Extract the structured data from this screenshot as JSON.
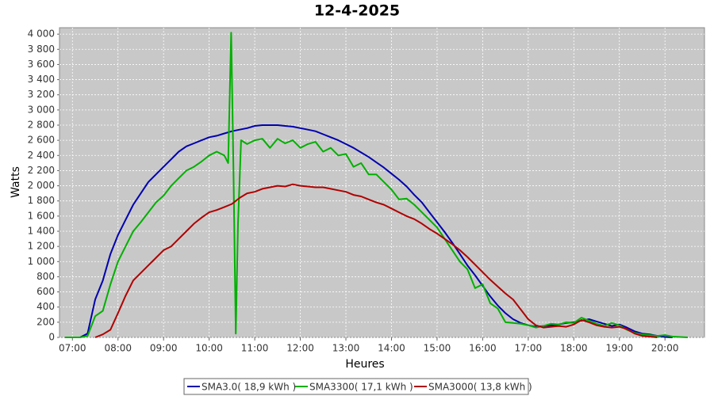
{
  "chart_data": {
    "type": "line",
    "title": "12-4-2025",
    "x_label": "Heures",
    "y_label": "Watts",
    "xlim": [
      "06:43",
      "20:52"
    ],
    "ylim": [
      0,
      4085
    ],
    "xticks": [
      "07:00",
      "08:00",
      "09:00",
      "10:00",
      "11:00",
      "12:00",
      "13:00",
      "14:00",
      "15:00",
      "16:00",
      "17:00",
      "18:00",
      "19:00",
      "20:00"
    ],
    "yticks": [
      0,
      200,
      400,
      600,
      800,
      {
        "value": 1000,
        "label": "1 000"
      },
      {
        "value": 1200,
        "label": "1 200"
      },
      {
        "value": 1400,
        "label": "1 400"
      },
      {
        "value": 1600,
        "label": "1 600"
      },
      {
        "value": 1800,
        "label": "1 800"
      },
      {
        "value": 2000,
        "label": "2 000"
      },
      {
        "value": 2200,
        "label": "2 200"
      },
      {
        "value": 2400,
        "label": "2 400"
      },
      {
        "value": 2600,
        "label": "2 600"
      },
      {
        "value": 2800,
        "label": "2 800"
      },
      {
        "value": 3000,
        "label": "3 000"
      },
      {
        "value": 3200,
        "label": "3 200"
      },
      {
        "value": 3400,
        "label": "3 400"
      },
      {
        "value": 3600,
        "label": "3 600"
      },
      {
        "value": 3800,
        "label": "3 800"
      },
      {
        "value": 4000,
        "label": "4 000"
      }
    ],
    "grid": true,
    "legend": "bottom",
    "series": [
      {
        "name": "SMA3.0( 18,9 kWh )",
        "color": "#0000b0",
        "x": [
          "07:00",
          "07:10",
          "07:20",
          "07:30",
          "07:40",
          "07:50",
          "08:00",
          "08:10",
          "08:20",
          "08:30",
          "08:40",
          "08:50",
          "09:00",
          "09:10",
          "09:20",
          "09:30",
          "09:40",
          "09:50",
          "10:00",
          "10:10",
          "10:20",
          "10:30",
          "10:40",
          "10:50",
          "11:00",
          "11:10",
          "11:20",
          "11:30",
          "11:40",
          "11:50",
          "12:00",
          "12:10",
          "12:20",
          "12:30",
          "12:40",
          "12:50",
          "13:00",
          "13:10",
          "13:20",
          "13:30",
          "13:40",
          "13:50",
          "14:00",
          "14:10",
          "14:20",
          "14:30",
          "14:40",
          "14:50",
          "15:00",
          "15:10",
          "15:20",
          "15:30",
          "15:40",
          "15:50",
          "16:00",
          "16:10",
          "16:20",
          "16:30",
          "16:40",
          "16:50",
          "17:00",
          "17:10",
          "17:20",
          "17:30",
          "17:40",
          "17:50",
          "18:00",
          "18:10",
          "18:20",
          "18:30",
          "18:40",
          "18:50",
          "19:00",
          "19:10",
          "19:20",
          "19:30",
          "19:40",
          "19:50",
          "20:00",
          "20:10"
        ],
        "values": [
          0,
          0,
          50,
          500,
          750,
          1100,
          1350,
          1550,
          1750,
          1900,
          2050,
          2150,
          2250,
          2350,
          2450,
          2520,
          2560,
          2600,
          2640,
          2660,
          2690,
          2720,
          2740,
          2760,
          2790,
          2800,
          2800,
          2800,
          2790,
          2780,
          2760,
          2740,
          2720,
          2680,
          2640,
          2600,
          2550,
          2500,
          2440,
          2380,
          2310,
          2240,
          2160,
          2080,
          1990,
          1880,
          1780,
          1650,
          1520,
          1390,
          1250,
          1100,
          950,
          820,
          680,
          540,
          420,
          320,
          240,
          190,
          160,
          140,
          150,
          160,
          170,
          190,
          200,
          220,
          240,
          210,
          180,
          150,
          170,
          130,
          80,
          50,
          40,
          20,
          5,
          0
        ]
      },
      {
        "name": "SMA3300( 17,1 kWh )",
        "color": "#00b000",
        "x": [
          "06:50",
          "07:00",
          "07:10",
          "07:20",
          "07:30",
          "07:40",
          "07:50",
          "08:00",
          "08:10",
          "08:20",
          "08:30",
          "08:40",
          "08:50",
          "09:00",
          "09:10",
          "09:20",
          "09:30",
          "09:40",
          "09:50",
          "10:00",
          "10:10",
          "10:20",
          "10:25",
          "10:29",
          "10:32",
          "10:35",
          "10:38",
          "10:42",
          "10:50",
          "11:00",
          "11:10",
          "11:20",
          "11:30",
          "11:40",
          "11:50",
          "12:00",
          "12:10",
          "12:20",
          "12:30",
          "12:40",
          "12:50",
          "13:00",
          "13:10",
          "13:20",
          "13:30",
          "13:40",
          "13:50",
          "14:00",
          "14:10",
          "14:20",
          "14:30",
          "14:40",
          "14:50",
          "15:00",
          "15:10",
          "15:20",
          "15:30",
          "15:40",
          "15:50",
          "16:00",
          "16:10",
          "16:20",
          "16:30",
          "16:40",
          "16:50",
          "17:00",
          "17:10",
          "17:20",
          "17:30",
          "17:40",
          "17:50",
          "18:00",
          "18:10",
          "18:20",
          "18:30",
          "18:40",
          "18:50",
          "19:00",
          "19:10",
          "19:20",
          "19:30",
          "19:40",
          "19:50",
          "20:00",
          "20:10",
          "20:20",
          "20:30"
        ],
        "values": [
          0,
          0,
          0,
          20,
          280,
          350,
          700,
          1000,
          1200,
          1400,
          1520,
          1650,
          1780,
          1870,
          2000,
          2100,
          2200,
          2250,
          2320,
          2400,
          2450,
          2400,
          2300,
          4020,
          2200,
          50,
          1500,
          2600,
          2550,
          2600,
          2620,
          2500,
          2620,
          2560,
          2600,
          2500,
          2550,
          2580,
          2450,
          2500,
          2400,
          2420,
          2250,
          2300,
          2150,
          2150,
          2050,
          1950,
          1820,
          1830,
          1750,
          1650,
          1550,
          1450,
          1300,
          1150,
          1000,
          900,
          650,
          700,
          450,
          380,
          200,
          190,
          180,
          160,
          130,
          150,
          180,
          170,
          200,
          190,
          260,
          220,
          180,
          150,
          190,
          160,
          100,
          60,
          40,
          30,
          20,
          30,
          10,
          5,
          0
        ]
      },
      {
        "name": "SMA3000( 13,8 kWh )",
        "color": "#b00000",
        "x": [
          "07:30",
          "07:40",
          "07:50",
          "08:00",
          "08:10",
          "08:20",
          "08:30",
          "08:40",
          "08:50",
          "09:00",
          "09:10",
          "09:20",
          "09:30",
          "09:40",
          "09:50",
          "10:00",
          "10:10",
          "10:20",
          "10:30",
          "10:40",
          "10:50",
          "11:00",
          "11:10",
          "11:20",
          "11:30",
          "11:40",
          "11:50",
          "12:00",
          "12:10",
          "12:20",
          "12:30",
          "12:40",
          "12:50",
          "13:00",
          "13:10",
          "13:20",
          "13:30",
          "13:40",
          "13:50",
          "14:00",
          "14:10",
          "14:20",
          "14:30",
          "14:40",
          "14:50",
          "15:00",
          "15:10",
          "15:20",
          "15:30",
          "15:40",
          "15:50",
          "16:00",
          "16:10",
          "16:20",
          "16:30",
          "16:40",
          "16:50",
          "17:00",
          "17:10",
          "17:20",
          "17:30",
          "17:40",
          "17:50",
          "18:00",
          "18:10",
          "18:20",
          "18:30",
          "18:40",
          "18:50",
          "19:00",
          "19:10",
          "19:20",
          "19:30",
          "19:40",
          "19:50"
        ],
        "values": [
          0,
          40,
          100,
          320,
          550,
          750,
          850,
          950,
          1050,
          1150,
          1200,
          1300,
          1400,
          1500,
          1580,
          1650,
          1680,
          1720,
          1760,
          1840,
          1900,
          1920,
          1960,
          1980,
          2000,
          1990,
          2020,
          2000,
          1990,
          1980,
          1980,
          1960,
          1940,
          1920,
          1880,
          1860,
          1820,
          1780,
          1750,
          1700,
          1650,
          1600,
          1560,
          1500,
          1430,
          1370,
          1300,
          1230,
          1150,
          1060,
          960,
          860,
          760,
          670,
          580,
          500,
          370,
          240,
          160,
          130,
          140,
          150,
          140,
          170,
          230,
          200,
          160,
          140,
          130,
          140,
          110,
          50,
          20,
          10,
          0
        ]
      }
    ]
  }
}
